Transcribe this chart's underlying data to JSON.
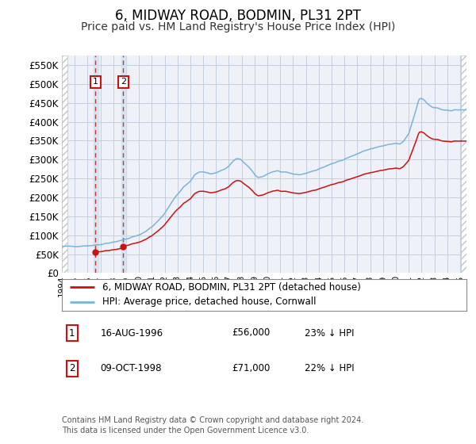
{
  "title": "6, MIDWAY ROAD, BODMIN, PL31 2PT",
  "subtitle": "Price paid vs. HM Land Registry's House Price Index (HPI)",
  "title_fontsize": 12,
  "subtitle_fontsize": 10,
  "ylabel_ticks": [
    "£0",
    "£50K",
    "£100K",
    "£150K",
    "£200K",
    "£250K",
    "£300K",
    "£350K",
    "£400K",
    "£450K",
    "£500K",
    "£550K"
  ],
  "ylim": [
    0,
    575000
  ],
  "xlim_start": 1994.0,
  "xlim_end": 2025.5,
  "hpi_color": "#7ab4d8",
  "price_color": "#cc1111",
  "sale1_date": 1996.62,
  "sale1_price": 56000,
  "sale1_label": "1",
  "sale2_date": 1998.77,
  "sale2_price": 71000,
  "sale2_label": "2",
  "bg_color": "#ffffff",
  "plot_bg_color": "#eef2f8",
  "grid_color": "#b8c4d8",
  "legend_line1": "6, MIDWAY ROAD, BODMIN, PL31 2PT (detached house)",
  "legend_line2": "HPI: Average price, detached house, Cornwall",
  "table_row1": [
    "1",
    "16-AUG-1996",
    "£56,000",
    "23% ↓ HPI"
  ],
  "table_row2": [
    "2",
    "09-OCT-1998",
    "£71,000",
    "22% ↓ HPI"
  ],
  "footer": "Contains HM Land Registry data © Crown copyright and database right 2024.\nThis data is licensed under the Open Government Licence v3.0.",
  "vspan1_start": 1996.5,
  "vspan1_end": 1996.83,
  "vspan2_start": 1998.65,
  "vspan2_end": 1999.0
}
